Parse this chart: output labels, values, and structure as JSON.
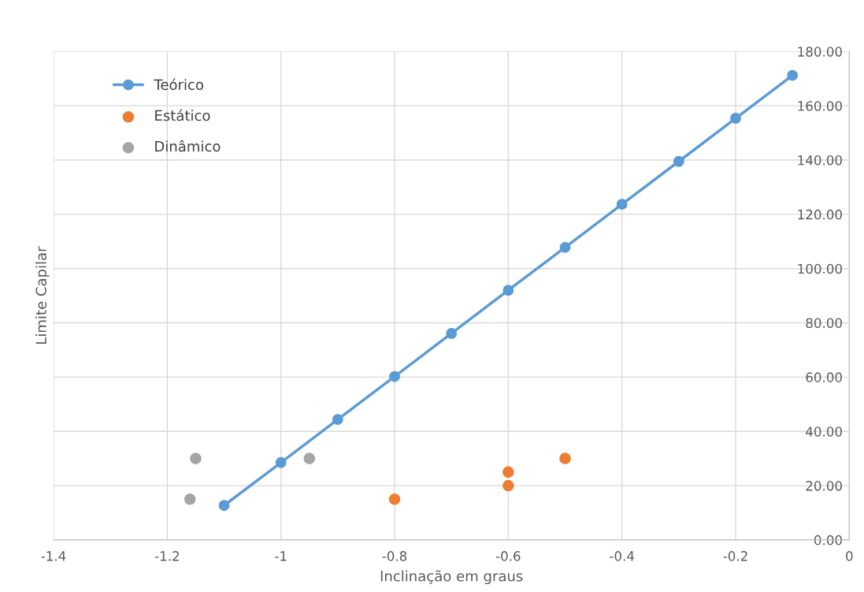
{
  "chart_data": {
    "type": "scatter",
    "xlabel": "Inclinação em graus",
    "ylabel": "Limite Capilar",
    "series": [
      {
        "name": "Teórico",
        "type": "line",
        "color": "#5b9bd5",
        "x": [
          -1.1,
          -1.0,
          -0.9,
          -0.8,
          -0.7,
          -0.6,
          -0.5,
          -0.4,
          -0.3,
          -0.2,
          -0.1
        ],
        "values": [
          12.7,
          28.5,
          44.4,
          60.2,
          76.1,
          92.0,
          107.8,
          123.7,
          139.5,
          155.4,
          171.2
        ]
      },
      {
        "name": "Estático",
        "color": "#ed7d31",
        "x": [
          -0.8,
          -0.6,
          -0.6,
          -0.5
        ],
        "values": [
          15,
          25,
          20,
          30
        ]
      },
      {
        "name": "Dinâmico",
        "color": "#a5a5a5",
        "x": [
          -1.16,
          -1.15,
          -0.95
        ],
        "values": [
          15,
          30,
          30
        ]
      }
    ],
    "xlim": [
      -1.4,
      0
    ],
    "ylim": [
      0,
      180
    ],
    "xticks": [
      -1.4,
      -1.2,
      -1,
      -0.8,
      -0.6,
      -0.4,
      -0.2,
      0
    ],
    "yticks": [
      {
        "value": 0,
        "label": "0.00"
      },
      {
        "value": 20,
        "label": "20.00"
      },
      {
        "value": 40,
        "label": "40.00"
      },
      {
        "value": 60,
        "label": "60.00"
      },
      {
        "value": 80,
        "label": "80.00"
      },
      {
        "value": 100,
        "label": "100.00"
      },
      {
        "value": 120,
        "label": "120.00"
      },
      {
        "value": 140,
        "label": "140.00"
      },
      {
        "value": 160,
        "label": "160.00"
      },
      {
        "value": 180,
        "label": "180.00"
      }
    ],
    "grid": true,
    "legend": "top left",
    "marker": "circle",
    "line_style": "solid"
  }
}
